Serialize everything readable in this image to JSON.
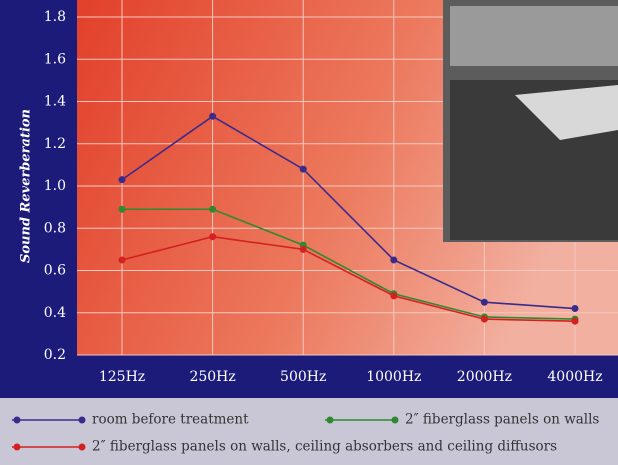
{
  "chart_data": {
    "type": "line",
    "y_label": "Sound Reverberation",
    "categories": [
      "125Hz",
      "250Hz",
      "500Hz",
      "1000Hz",
      "2000Hz",
      "4000Hz"
    ],
    "series": [
      {
        "name": "room before treatment",
        "color": "#3a2a8c",
        "values": [
          1.03,
          1.33,
          1.08,
          0.65,
          0.45,
          0.42
        ]
      },
      {
        "name": "2″ fiberglass panels on walls",
        "color": "#2f8a2f",
        "values": [
          0.89,
          0.89,
          0.72,
          0.49,
          0.38,
          0.37
        ]
      },
      {
        "name": "2″ fiberglass panels on walls, ceiling absorbers and ceiling diffusors",
        "color": "#d42020",
        "values": [
          0.65,
          0.76,
          0.7,
          0.48,
          0.37,
          0.36
        ]
      }
    ],
    "ylim": [
      0.2,
      1.8
    ],
    "yticks": [
      0.2,
      0.4,
      0.6,
      0.8,
      {
        "value": 1,
        "label": "1.0"
      },
      1.2,
      1.4,
      1.6,
      1.8
    ],
    "grid": true
  }
}
